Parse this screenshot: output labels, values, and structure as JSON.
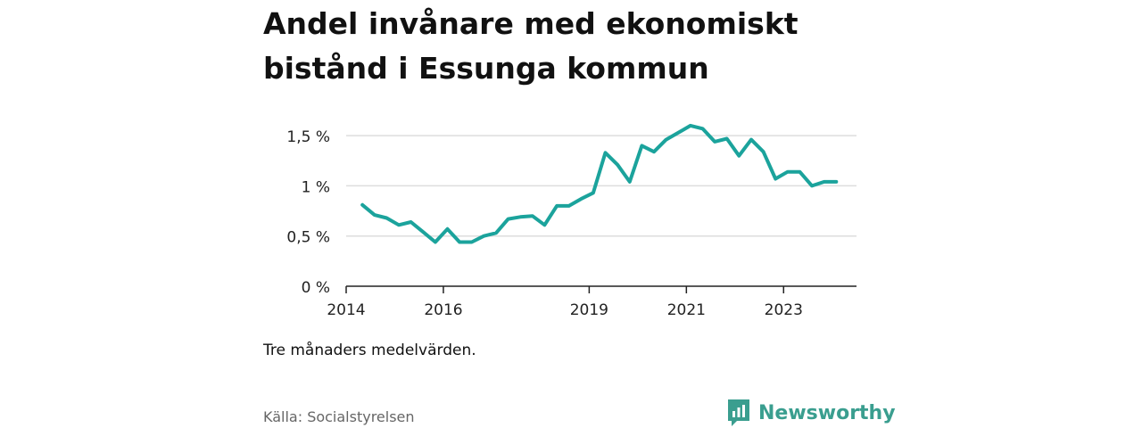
{
  "chart_data": {
    "type": "line",
    "title": "Andel invånare med ekonomiskt bistånd i Essunga kommun",
    "note": "Tre månaders medelvärden.",
    "source": "Källa: Socialstyrelsen",
    "brand": "Newsworthy",
    "ylim": [
      0,
      1.75
    ],
    "xlim": [
      "2014-01",
      "2024-07"
    ],
    "yticks": [
      {
        "value": 0,
        "label": "0 %"
      },
      {
        "value": 0.5,
        "label": "0,5 %"
      },
      {
        "value": 1.0,
        "label": "1 %"
      },
      {
        "value": 1.5,
        "label": "1,5 %"
      }
    ],
    "xticks": [
      {
        "value": "2014-01",
        "label": "2014"
      },
      {
        "value": "2016-01",
        "label": "2016"
      },
      {
        "value": "2019-01",
        "label": "2019"
      },
      {
        "value": "2021-01",
        "label": "2021"
      },
      {
        "value": "2023-01",
        "label": "2023"
      }
    ],
    "grid": true,
    "color": "#1ba39c",
    "series": [
      {
        "x": [
          "2014-05",
          "2014-08",
          "2014-11",
          "2015-02",
          "2015-05",
          "2015-08",
          "2015-11",
          "2016-02",
          "2016-05",
          "2016-08",
          "2016-11",
          "2017-02",
          "2017-05",
          "2017-08",
          "2017-11",
          "2018-02",
          "2018-05",
          "2018-08",
          "2018-11",
          "2019-02",
          "2019-05",
          "2019-08",
          "2019-11",
          "2020-02",
          "2020-05",
          "2020-08",
          "2020-11",
          "2021-02",
          "2021-05",
          "2021-08",
          "2021-11",
          "2022-02",
          "2022-05",
          "2022-08",
          "2022-11",
          "2023-02",
          "2023-05",
          "2023-08",
          "2023-11",
          "2024-02"
        ],
        "y": [
          0.81,
          0.71,
          0.68,
          0.61,
          0.64,
          0.54,
          0.44,
          0.57,
          0.44,
          0.44,
          0.5,
          0.53,
          0.67,
          0.69,
          0.7,
          0.61,
          0.8,
          0.8,
          0.87,
          0.93,
          1.33,
          1.21,
          1.04,
          1.4,
          1.34,
          1.46,
          1.53,
          1.6,
          1.57,
          1.44,
          1.47,
          1.3,
          1.46,
          1.34,
          1.07,
          1.14,
          1.14,
          1.0,
          1.04,
          1.04
        ]
      }
    ]
  }
}
